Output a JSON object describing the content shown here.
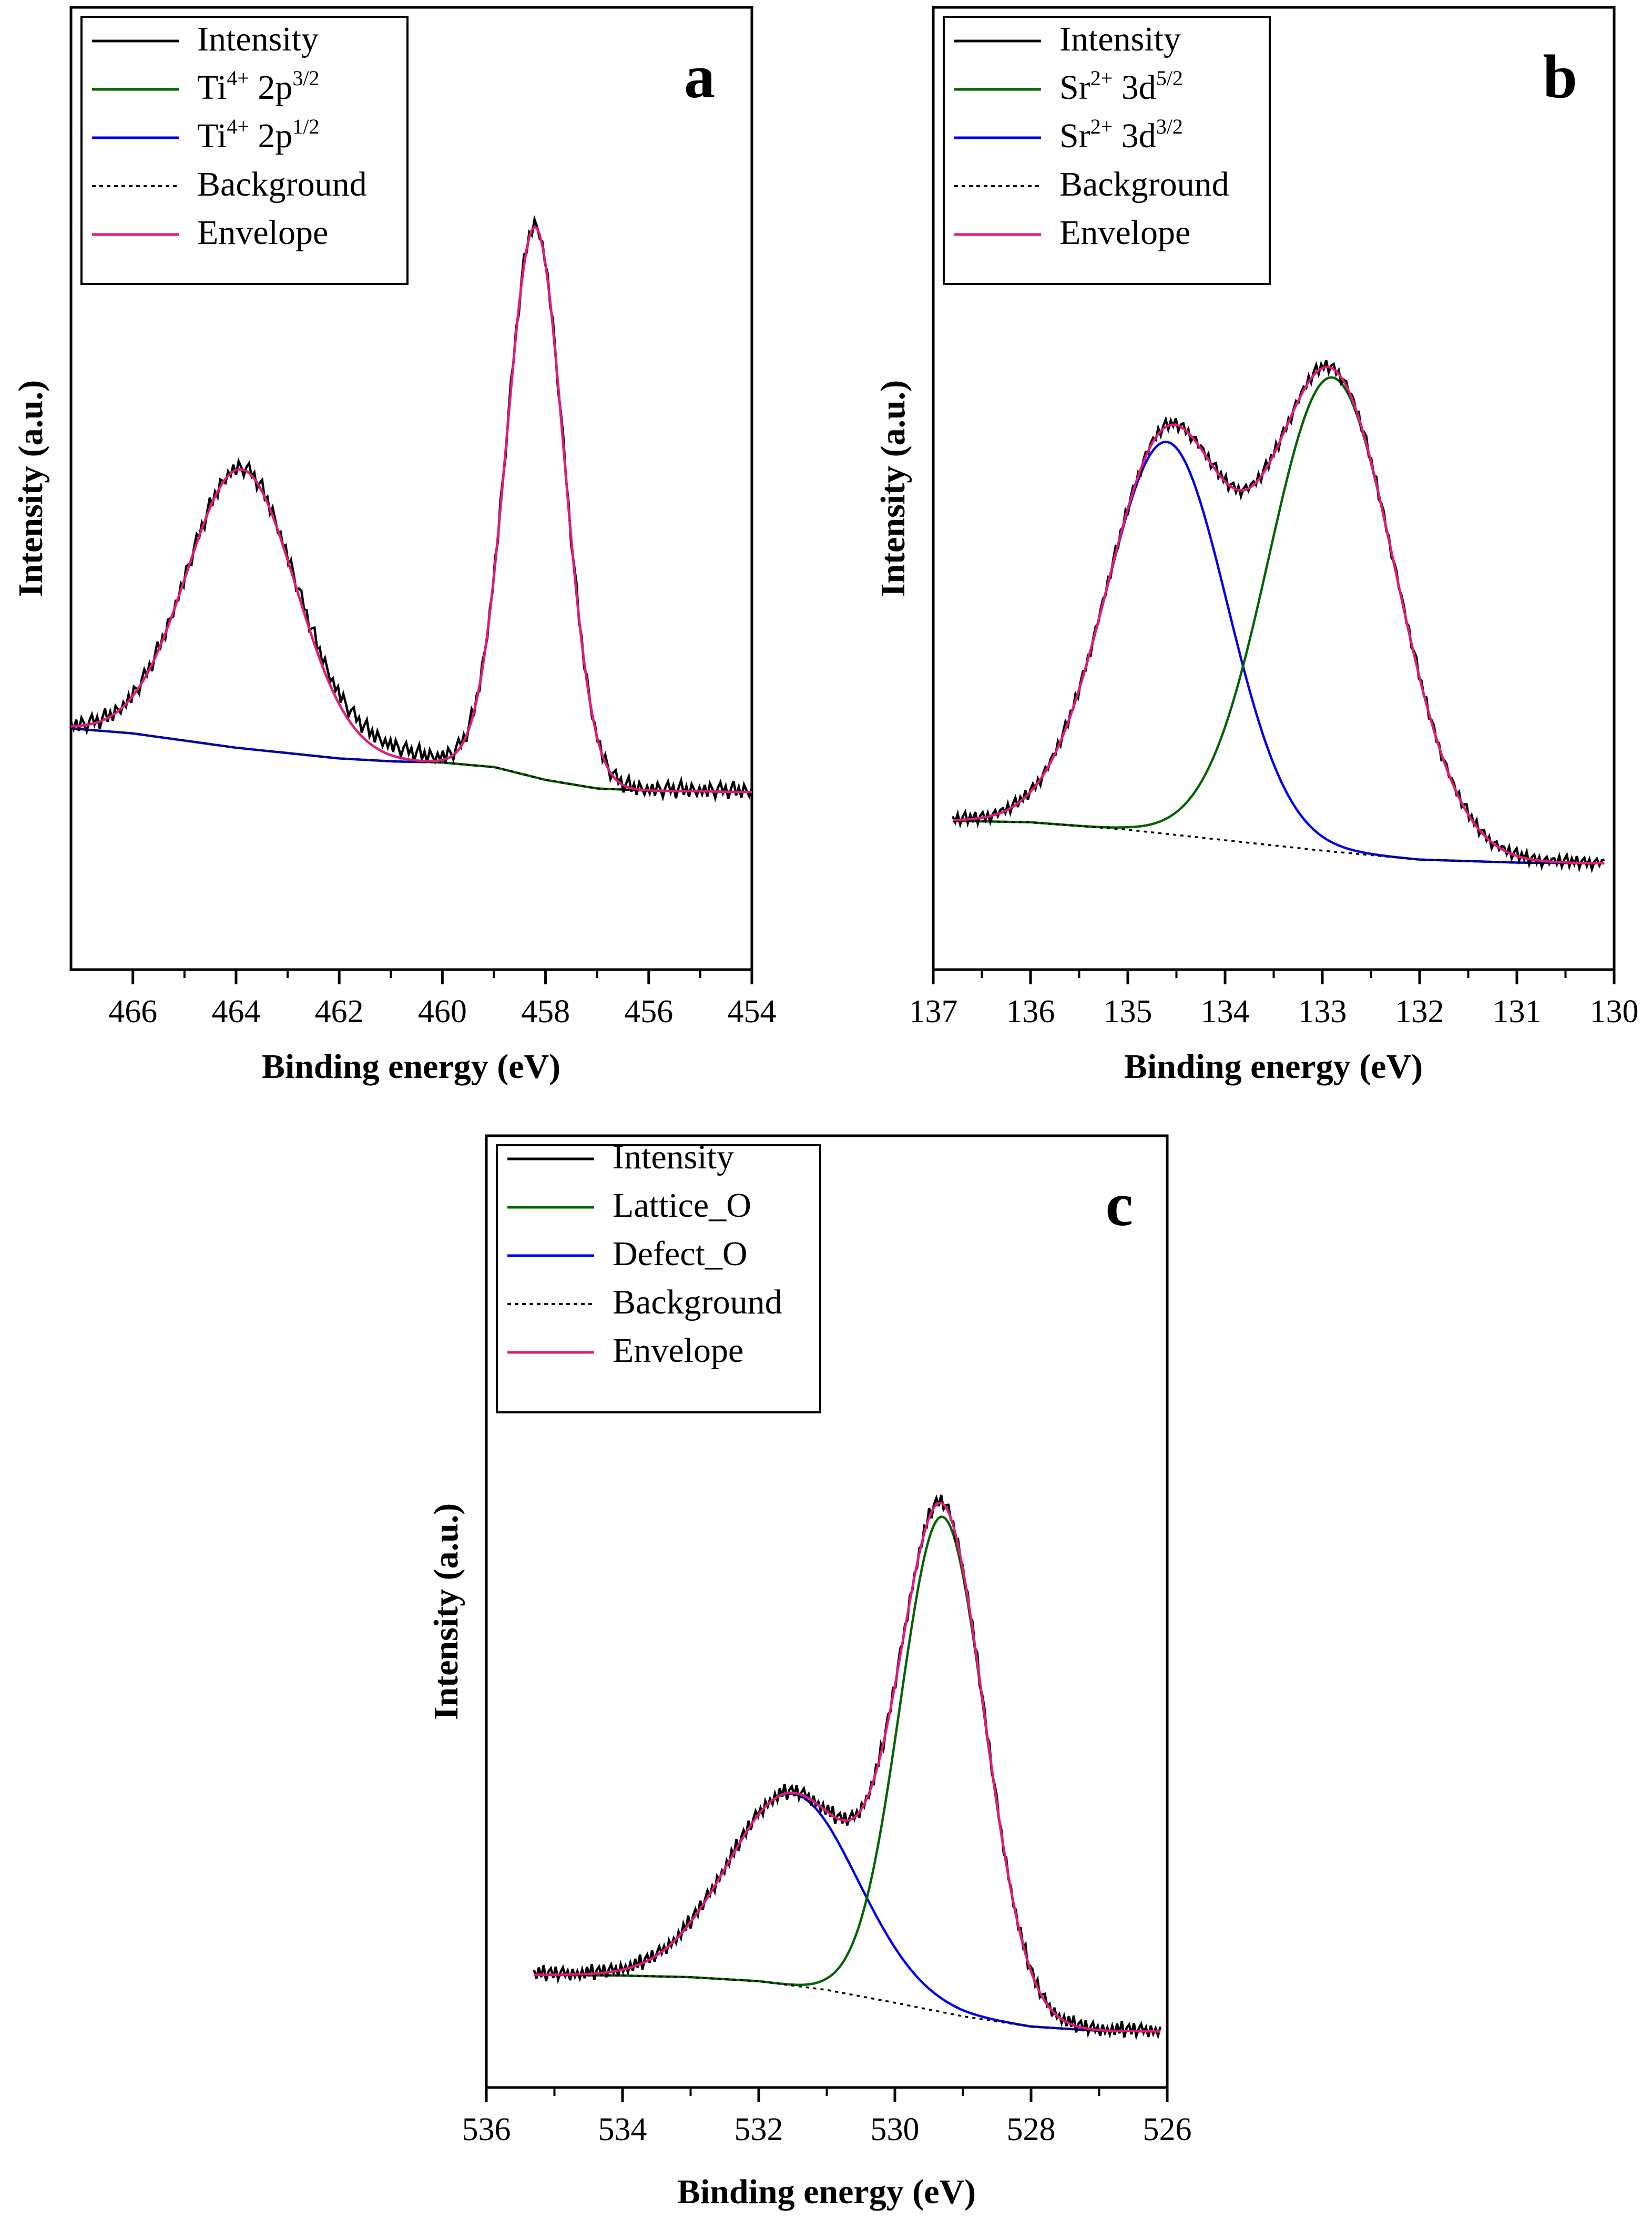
{
  "colors": {
    "intensity": "#000000",
    "component1": "#006400",
    "component2": "#0000ee",
    "background": "#000000",
    "envelope": "#e6197a",
    "frame": "#000000"
  },
  "chart_data": [
    {
      "panel": "a",
      "type": "line",
      "xlabel": "Binding energy (eV)",
      "ylabel": "Intensity (a.u.)",
      "xlim": [
        467.2,
        454
      ],
      "ylim": [
        0,
        100
      ],
      "xticks": [
        466,
        464,
        462,
        460,
        458,
        456,
        454
      ],
      "legend": [
        {
          "key": "intensity",
          "label": "Intensity",
          "sup": "",
          "sub": "",
          "style": "solid"
        },
        {
          "key": "c1",
          "label": "Ti",
          "sup": "4+",
          "label2": " 2p",
          "sup2": "3/2",
          "style": "solid"
        },
        {
          "key": "c2",
          "label": "Ti",
          "sup": "4+",
          "label2": " 2p",
          "sup2": "1/2",
          "style": "solid"
        },
        {
          "key": "background",
          "label": "Background",
          "sup": "",
          "style": "dotted"
        },
        {
          "key": "envelope",
          "label": "Envelope",
          "sup": "",
          "style": "solid"
        }
      ],
      "peaks": [
        {
          "name": "Ti4+ 2p1/2",
          "center": 463.9,
          "height": 39,
          "sigma": 1.05
        },
        {
          "name": "Ti4+ 2p3/2",
          "center": 458.2,
          "height": 77,
          "sigma": 0.55
        }
      ],
      "background_curve": {
        "x": [
          467.2,
          466,
          464,
          462,
          461,
          460,
          459,
          458,
          457,
          456,
          455,
          454
        ],
        "y": [
          20.2,
          19.5,
          17.5,
          16.0,
          15.6,
          15.4,
          14.8,
          13.0,
          11.8,
          11.5,
          11.4,
          11.3
        ]
      },
      "intensity_noise": [
        0.6,
        -0.4,
        0.9,
        -0.7,
        1.1,
        0.3,
        -0.9,
        0.5,
        1.3,
        -0.2,
        0.8,
        -1.0,
        0.4,
        1.5,
        -0.5,
        0.7,
        -0.8,
        1.0,
        0.2,
        -0.6
      ],
      "background_extra": 1.5
    },
    {
      "panel": "b",
      "type": "line",
      "xlabel": "Binding energy (eV)",
      "ylabel": "Intensity (a.u.)",
      "xlim": [
        137,
        130
      ],
      "ylim": [
        0,
        100
      ],
      "xticks": [
        137,
        136,
        135,
        134,
        133,
        132,
        131,
        130
      ],
      "legend": [
        {
          "key": "intensity",
          "label": "Intensity",
          "sup": "",
          "style": "solid"
        },
        {
          "key": "c1",
          "label": "Sr",
          "sup": "2+",
          "label2": " 3d",
          "sup2": "5/2",
          "style": "solid"
        },
        {
          "key": "c2",
          "label": "Sr",
          "sup": "2+",
          "label2": " 3d",
          "sup2": "3/2",
          "style": "solid"
        },
        {
          "key": "background",
          "label": "Background",
          "sup": "",
          "style": "dotted"
        },
        {
          "key": "envelope",
          "label": "Envelope",
          "sup": "",
          "style": "solid"
        }
      ],
      "peaks": [
        {
          "name": "Sr2+ 3d5/2",
          "center": 132.9,
          "height": 63.5,
          "sigma": 0.65
        },
        {
          "name": "Sr2+ 3d3/2",
          "center": 134.6,
          "height": 52.5,
          "sigma": 0.62
        }
      ],
      "background_curve": {
        "x": [
          136.8,
          136,
          135,
          134,
          133,
          132,
          131,
          130.1
        ],
        "y": [
          11.2,
          11.0,
          10.0,
          8.6,
          7.2,
          6.0,
          5.6,
          5.5
        ]
      },
      "intensity_noise": [
        0.5,
        -0.3,
        0.8,
        -0.6,
        0.4,
        1.0,
        -0.5,
        0.6,
        -0.2,
        0.9,
        -0.7,
        0.3,
        0.7,
        -0.4,
        0.5,
        -0.8,
        0.2,
        0.6,
        -0.3,
        0.4
      ],
      "background_extra": 0
    },
    {
      "panel": "c",
      "type": "line",
      "xlabel": "Binding energy (eV)",
      "ylabel": "Intensity (a.u.)",
      "xlim": [
        536,
        526
      ],
      "ylim": [
        0,
        100
      ],
      "xticks": [
        536,
        534,
        532,
        530,
        528,
        526
      ],
      "legend": [
        {
          "key": "intensity",
          "label": "Intensity",
          "sup": "",
          "style": "solid"
        },
        {
          "key": "c1",
          "label": "Lattice_O",
          "sup": "",
          "style": "solid"
        },
        {
          "key": "c2",
          "label": "Defect_O",
          "sup": "",
          "style": "solid"
        },
        {
          "key": "background",
          "label": "Background",
          "sup": "",
          "style": "dotted"
        },
        {
          "key": "envelope",
          "label": "Envelope",
          "sup": "",
          "style": "solid"
        }
      ],
      "peaks": [
        {
          "name": "Lattice_O",
          "center": 529.3,
          "height": 62,
          "sigma": 0.62
        },
        {
          "name": "Defect_O",
          "center": 531.5,
          "height": 24,
          "sigma": 0.95
        }
      ],
      "background_curve": {
        "x": [
          535.3,
          534,
          533,
          532,
          531,
          530,
          529,
          528,
          527,
          526.1
        ],
        "y": [
          9.5,
          9.4,
          9.2,
          8.7,
          7.6,
          6.0,
          4.3,
          3.0,
          2.5,
          2.4
        ]
      },
      "intensity_noise": [
        0.6,
        -0.5,
        0.9,
        -0.3,
        1.2,
        -0.8,
        0.4,
        0.8,
        -0.4,
        1.0,
        -0.6,
        0.3,
        0.9,
        -0.2,
        0.5,
        -0.7,
        0.7,
        -0.3,
        0.4,
        -0.5
      ],
      "background_extra": 0
    }
  ]
}
